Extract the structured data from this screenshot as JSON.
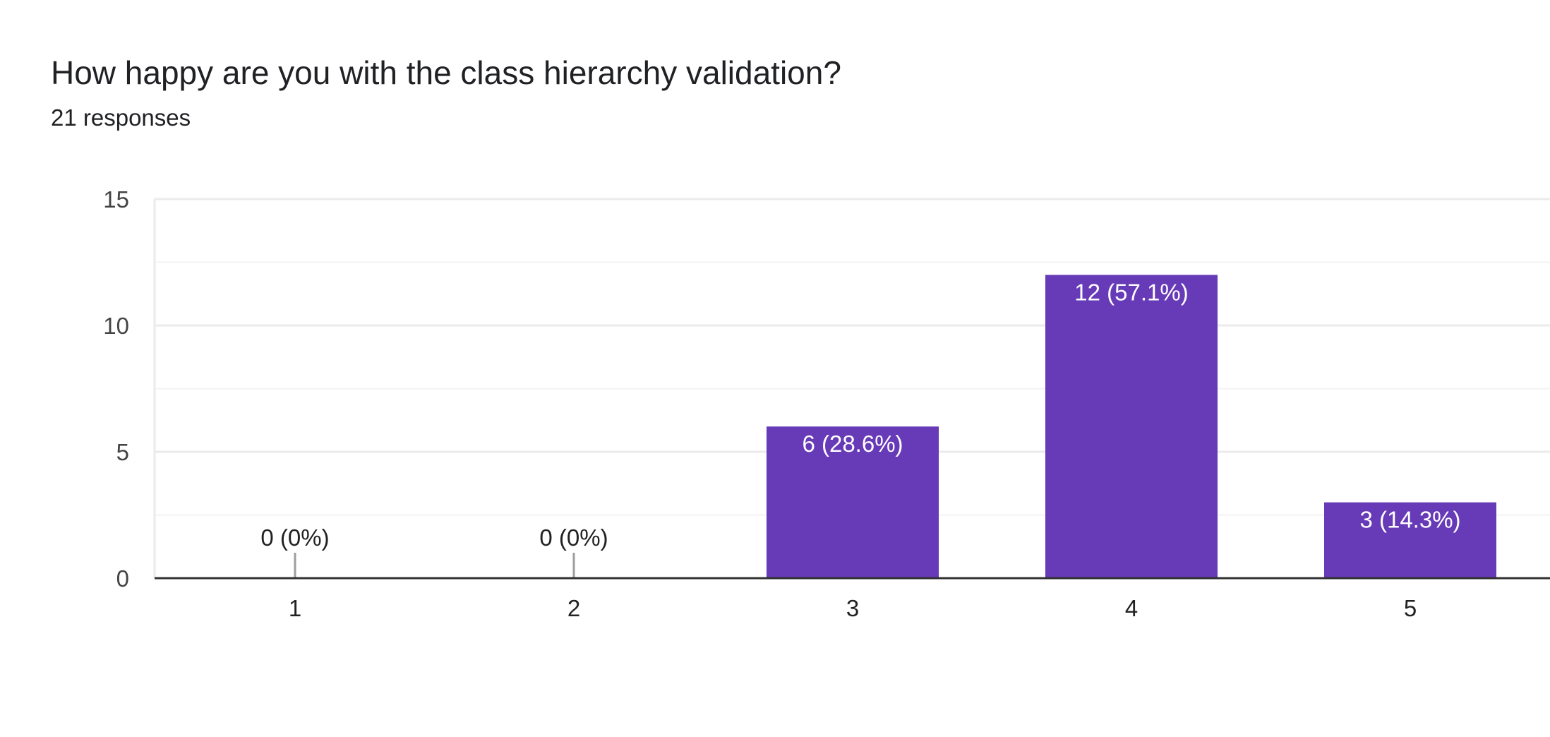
{
  "header": {
    "title": "How happy are you with the class hierarchy validation?",
    "responses": "21 responses"
  },
  "colors": {
    "bar": "#673ab7",
    "grid": "#ebebeb",
    "grid_minor": "#f3f3f3",
    "axis": "#333333",
    "zero_stub": "#9e9e9e",
    "label_inside": "#ffffff",
    "label_outside": "#222222"
  },
  "chart_data": {
    "type": "bar",
    "categories": [
      "1",
      "2",
      "3",
      "4",
      "5"
    ],
    "values": [
      0,
      0,
      6,
      12,
      3
    ],
    "data_labels": [
      "0 (0%)",
      "0 (0%)",
      "6 (28.6%)",
      "12 (57.1%)",
      "3 (14.3%)"
    ],
    "ylim": [
      0,
      15
    ],
    "yticks": [
      0,
      5,
      10,
      15
    ],
    "grid": true,
    "legend": "none"
  }
}
